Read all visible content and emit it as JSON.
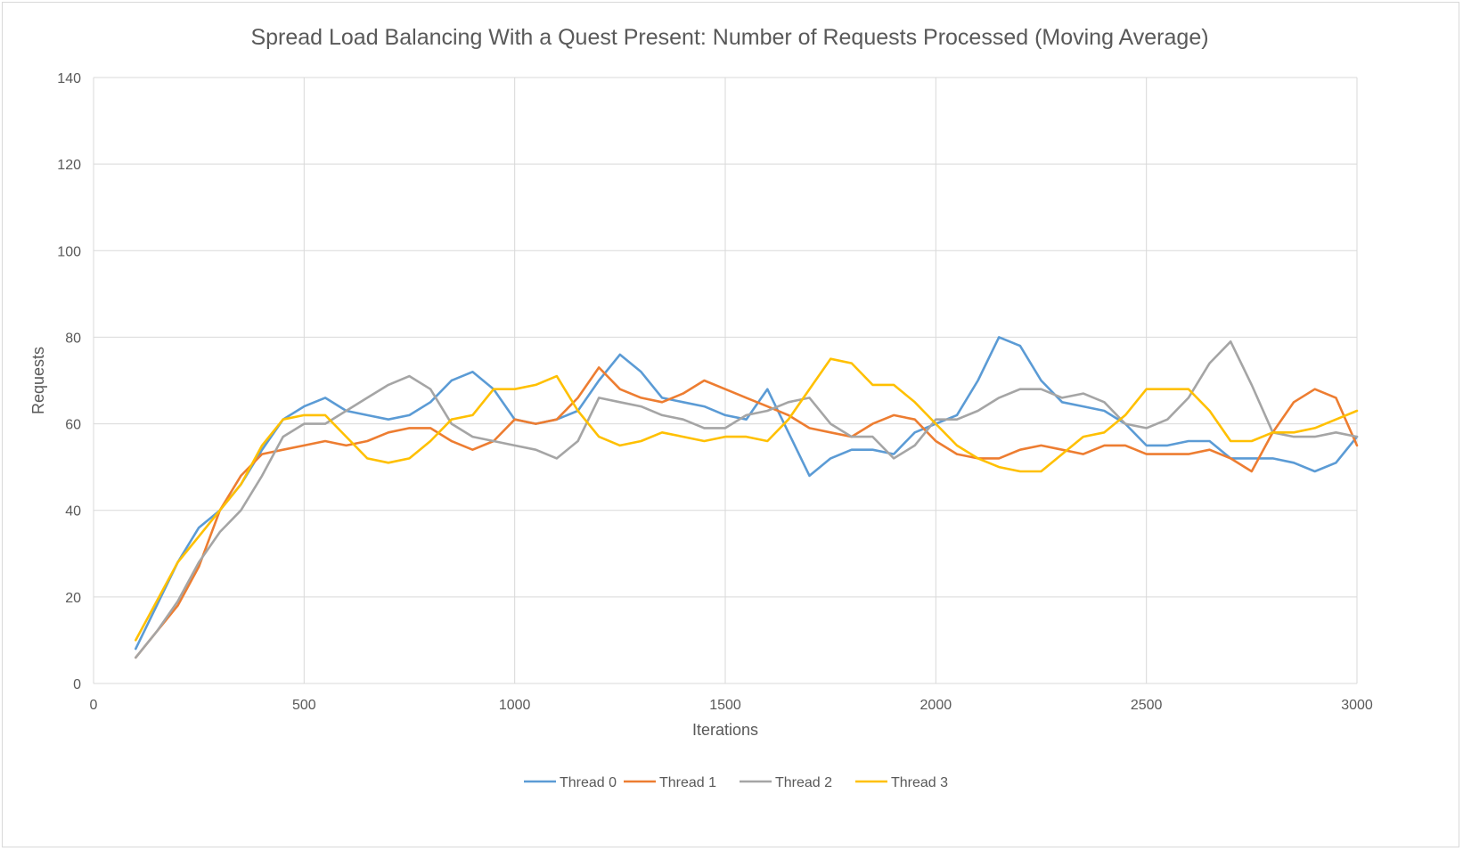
{
  "chart_data": {
    "type": "line",
    "title": "Spread Load Balancing With a Quest Present: Number of Requests Processed (Moving Average)",
    "xlabel": "Iterations",
    "ylabel": "Requests",
    "xlim": [
      0,
      3000
    ],
    "ylim": [
      0,
      140
    ],
    "xticks": [
      "0",
      "500",
      "1000",
      "1500",
      "2000",
      "2500",
      "3000"
    ],
    "yticks": [
      "0",
      "20",
      "40",
      "60",
      "80",
      "100",
      "120",
      "140"
    ],
    "grid": true,
    "legend_position": "bottom",
    "x": [
      100,
      150,
      200,
      250,
      300,
      350,
      400,
      450,
      500,
      550,
      600,
      650,
      700,
      750,
      800,
      850,
      900,
      950,
      1000,
      1050,
      1100,
      1150,
      1200,
      1250,
      1300,
      1350,
      1400,
      1450,
      1500,
      1550,
      1600,
      1650,
      1700,
      1750,
      1800,
      1850,
      1900,
      1950,
      2000,
      2050,
      2100,
      2150,
      2200,
      2250,
      2300,
      2350,
      2400,
      2450,
      2500,
      2550,
      2600,
      2650,
      2700,
      2750,
      2800,
      2850,
      2900,
      2950,
      3000
    ],
    "series": [
      {
        "name": "Thread 0",
        "color": "#5b9bd5",
        "values": [
          8,
          18,
          28,
          36,
          40,
          46,
          54,
          61,
          64,
          66,
          63,
          62,
          61,
          62,
          65,
          70,
          72,
          68,
          61,
          60,
          61,
          63,
          70,
          76,
          72,
          66,
          65,
          64,
          62,
          61,
          68,
          58,
          48,
          52,
          54,
          54,
          53,
          58,
          60,
          62,
          70,
          80,
          78,
          70,
          65,
          64,
          63,
          60,
          55,
          55,
          56,
          56,
          52,
          52,
          52,
          51,
          49,
          51,
          57
        ]
      },
      {
        "name": "Thread 1",
        "color": "#ed7d31",
        "values": [
          6,
          12,
          18,
          27,
          40,
          48,
          53,
          54,
          55,
          56,
          55,
          56,
          58,
          59,
          59,
          56,
          54,
          56,
          61,
          60,
          61,
          66,
          73,
          68,
          66,
          65,
          67,
          70,
          68,
          66,
          64,
          62,
          59,
          58,
          57,
          60,
          62,
          61,
          56,
          53,
          52,
          52,
          54,
          55,
          54,
          53,
          55,
          55,
          53,
          53,
          53,
          54,
          52,
          49,
          58,
          65,
          68,
          66,
          55
        ]
      },
      {
        "name": "Thread 2",
        "color": "#a5a5a5",
        "values": [
          6,
          12,
          19,
          28,
          35,
          40,
          48,
          57,
          60,
          60,
          63,
          66,
          69,
          71,
          68,
          60,
          57,
          56,
          55,
          54,
          52,
          56,
          66,
          65,
          64,
          62,
          61,
          59,
          59,
          62,
          63,
          65,
          66,
          60,
          57,
          57,
          52,
          55,
          61,
          61,
          63,
          66,
          68,
          68,
          66,
          67,
          65,
          60,
          59,
          61,
          66,
          74,
          79,
          69,
          58,
          57,
          57,
          58,
          57
        ]
      },
      {
        "name": "Thread 3",
        "color": "#ffc000",
        "values": [
          10,
          19,
          28,
          34,
          40,
          46,
          55,
          61,
          62,
          62,
          57,
          52,
          51,
          52,
          56,
          61,
          62,
          68,
          68,
          69,
          71,
          63,
          57,
          55,
          56,
          58,
          57,
          56,
          57,
          57,
          56,
          61,
          68,
          75,
          74,
          69,
          69,
          65,
          60,
          55,
          52,
          50,
          49,
          49,
          53,
          57,
          58,
          62,
          68,
          68,
          68,
          63,
          56,
          56,
          58,
          58,
          59,
          61,
          63
        ]
      }
    ]
  }
}
